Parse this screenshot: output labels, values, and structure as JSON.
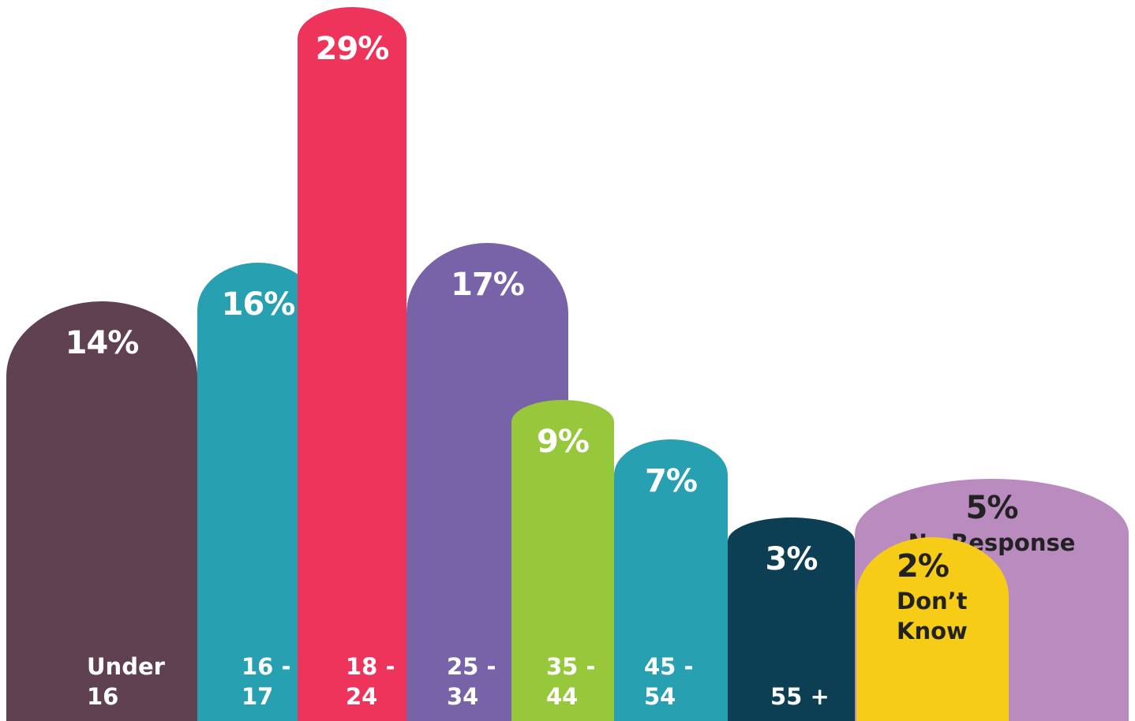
{
  "chart_data": {
    "type": "bar",
    "categories": [
      "Under 16",
      "16 - 17",
      "18 - 24",
      "25 - 34",
      "35 - 44",
      "45 - 54",
      "55 +",
      "No Response",
      "Don’t Know"
    ],
    "values": [
      14,
      16,
      29,
      17,
      9,
      7,
      3,
      5,
      2
    ],
    "value_labels": [
      "14%",
      "16%",
      "29%",
      "17%",
      "9%",
      "7%",
      "3%",
      "5%",
      "2%"
    ],
    "colors": [
      "#5f4152",
      "#27a0b1",
      "#ee345a",
      "#7862a8",
      "#97c83c",
      "#27a0b1",
      "#0c3f54",
      "#b98bbf",
      "#f7cc16"
    ]
  }
}
